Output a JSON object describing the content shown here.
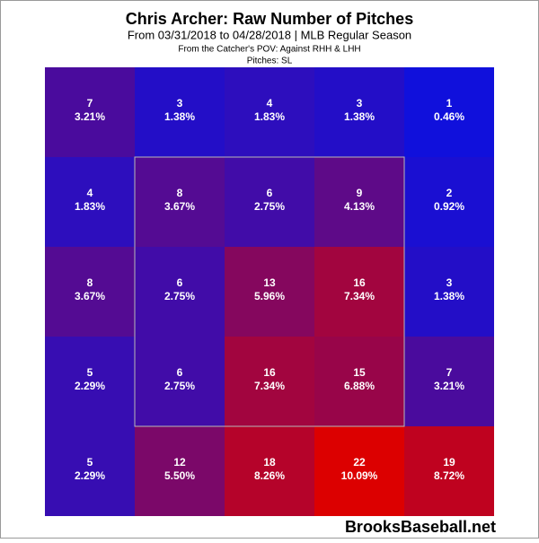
{
  "chart_data": {
    "type": "heatmap",
    "title": "Chris Archer: Raw Number of Pitches",
    "subtitle": "From 03/31/2018 to 04/28/2018 | MLB Regular Season",
    "note": "From the Catcher's POV:  Against RHH & LHH",
    "pitches": "Pitches:  SL",
    "source": "BrooksBaseball.net",
    "low_color": "#1010dc",
    "high_color": "#dc0000",
    "values": [
      [
        7,
        3,
        4,
        3,
        1
      ],
      [
        4,
        8,
        6,
        9,
        2
      ],
      [
        8,
        6,
        13,
        16,
        3
      ],
      [
        5,
        6,
        16,
        15,
        7
      ],
      [
        5,
        12,
        18,
        22,
        19
      ]
    ],
    "percents": [
      [
        3.21,
        1.38,
        1.83,
        1.38,
        0.46
      ],
      [
        1.83,
        3.67,
        2.75,
        4.13,
        0.92
      ],
      [
        3.67,
        2.75,
        5.96,
        7.34,
        1.38
      ],
      [
        2.29,
        2.75,
        7.34,
        6.88,
        3.21
      ],
      [
        2.29,
        5.5,
        8.26,
        10.09,
        8.72
      ]
    ],
    "percent_labels": [
      [
        "3.21%",
        "1.38%",
        "1.83%",
        "1.38%",
        "0.46%"
      ],
      [
        "1.83%",
        "3.67%",
        "2.75%",
        "4.13%",
        "0.92%"
      ],
      [
        "3.67%",
        "2.75%",
        "5.96%",
        "7.34%",
        "1.38%"
      ],
      [
        "2.29%",
        "2.75%",
        "7.34%",
        "6.88%",
        "3.21%"
      ],
      [
        "2.29%",
        "5.50%",
        "8.26%",
        "10.09%",
        "8.72%"
      ]
    ]
  }
}
